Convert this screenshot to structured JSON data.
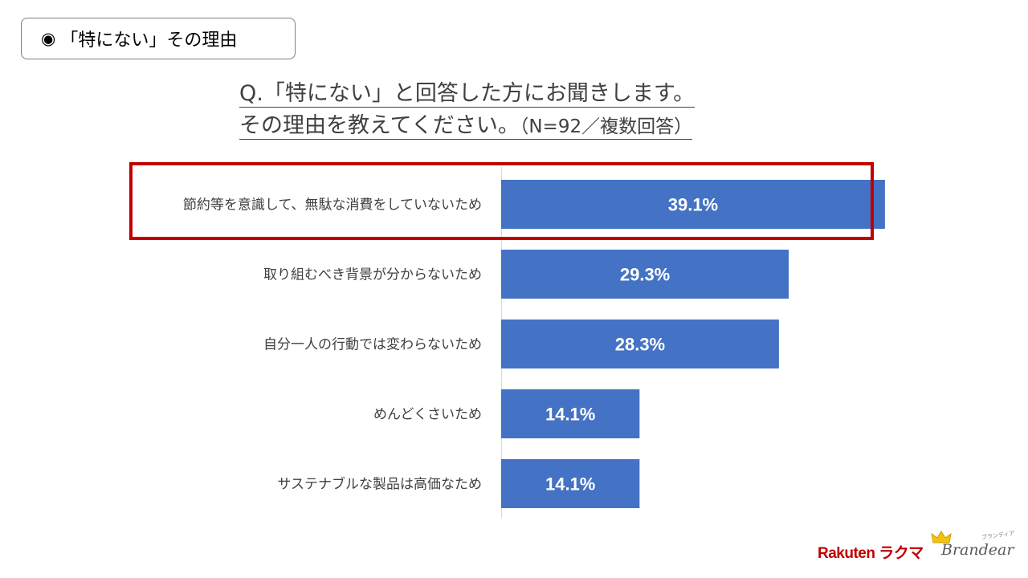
{
  "badge": {
    "bullet": "◉",
    "text": "「特にない」その理由"
  },
  "question": {
    "line1": "Q.「特にない」と回答した方にお聞きします。",
    "line2": "その理由を教えてください。",
    "note": "（N=92／複数回答）"
  },
  "chart_data": {
    "type": "bar",
    "orientation": "horizontal",
    "title": "",
    "xlabel": "",
    "ylabel": "",
    "xlim": [
      0,
      45
    ],
    "unit": "%",
    "categories": [
      "節約等を意識して、無駄な消費をしていないため",
      "取り組むべき背景が分からないため",
      "自分一人の行動では変わらないため",
      "めんどくさいため",
      "サステナブルな製品は高価なため"
    ],
    "values": [
      39.1,
      29.3,
      28.3,
      14.1,
      14.1
    ],
    "value_labels": [
      "39.1%",
      "29.3%",
      "28.3%",
      "14.1%",
      "14.1%"
    ],
    "highlighted_index": 0,
    "colors": {
      "bar": "#4472c4",
      "highlight": "#c00000",
      "axis": "#d9d9d9"
    }
  },
  "logos": {
    "rakuten": {
      "text": "Rakuten ラクマ",
      "color": "#bf0000"
    },
    "brandear": {
      "word": "Brandear",
      "kana": "ブランディア"
    }
  }
}
